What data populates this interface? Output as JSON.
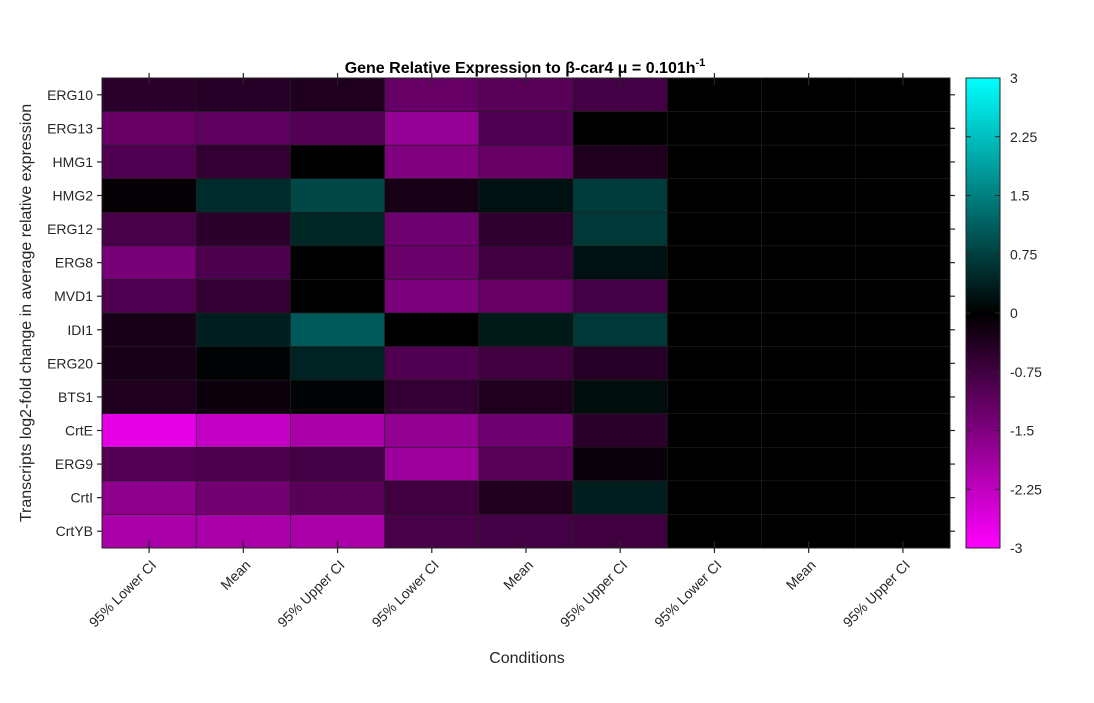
{
  "chart_data": {
    "type": "heatmap",
    "title": "Gene Relative Expression to β-car4 μ = 0.101h",
    "title_superscript": "-1",
    "xlabel": "Conditions",
    "ylabel": "Transcripts log2-fold change in average relative expression",
    "columns": [
      "95% Lower CI",
      "Mean",
      "95% Upper CI",
      "95% Lower CI",
      "Mean",
      "95% Upper CI",
      "95% Lower CI",
      "Mean",
      "95% Upper CI"
    ],
    "rows": [
      "ERG10",
      "ERG13",
      "HMG1",
      "HMG2",
      "ERG12",
      "ERG8",
      "MVD1",
      "IDI1",
      "ERG20",
      "BTS1",
      "CrtE",
      "ERG9",
      "CrtI",
      "CrtYB"
    ],
    "values": [
      [
        -0.5,
        -0.45,
        -0.35,
        -1.2,
        -1.05,
        -0.8,
        0,
        0,
        0
      ],
      [
        -1.2,
        -1.1,
        -1.0,
        -1.75,
        -0.95,
        0,
        0,
        0,
        0
      ],
      [
        -0.95,
        -0.6,
        0,
        -1.5,
        -1.2,
        -0.35,
        0,
        0,
        0
      ],
      [
        -0.05,
        0.5,
        0.85,
        -0.25,
        0.2,
        0.7,
        0,
        0,
        0
      ],
      [
        -0.85,
        -0.5,
        0.45,
        -1.3,
        -0.55,
        0.65,
        0,
        0,
        0
      ],
      [
        -1.4,
        -0.9,
        0,
        -1.25,
        -0.75,
        0.2,
        0,
        0,
        0
      ],
      [
        -0.95,
        -0.6,
        0,
        -1.45,
        -1.2,
        -0.8,
        0,
        0,
        0
      ],
      [
        -0.3,
        0.35,
        1.05,
        0,
        0.3,
        0.65,
        0,
        0,
        0
      ],
      [
        -0.3,
        0.05,
        0.4,
        -0.95,
        -0.75,
        -0.45,
        0,
        0,
        0
      ],
      [
        -0.35,
        -0.15,
        0.05,
        -0.6,
        -0.35,
        0.15,
        0,
        0,
        0
      ],
      [
        -2.7,
        -2.3,
        -2.0,
        -1.7,
        -1.3,
        -0.5,
        0,
        0,
        0
      ],
      [
        -1.0,
        -0.9,
        -0.8,
        -1.85,
        -1.05,
        -0.1,
        0,
        0,
        0
      ],
      [
        -1.65,
        -1.35,
        -1.05,
        -0.75,
        -0.35,
        0.35,
        0,
        0,
        0
      ],
      [
        -2.0,
        -2.0,
        -2.0,
        -0.85,
        -0.8,
        -0.75,
        0,
        0,
        0
      ]
    ],
    "clim": [
      -3,
      3
    ],
    "colorbar_ticks": [
      "3",
      "2.25",
      "1.5",
      "0.75",
      "0",
      "-0.75",
      "-1.5",
      "-2.25",
      "-3"
    ],
    "colormap": {
      "negative": "#ff00ff",
      "zero": "#000000",
      "positive": "#00ffff"
    },
    "colors": {
      "axis": "#262626",
      "background": "#ffffff"
    }
  }
}
